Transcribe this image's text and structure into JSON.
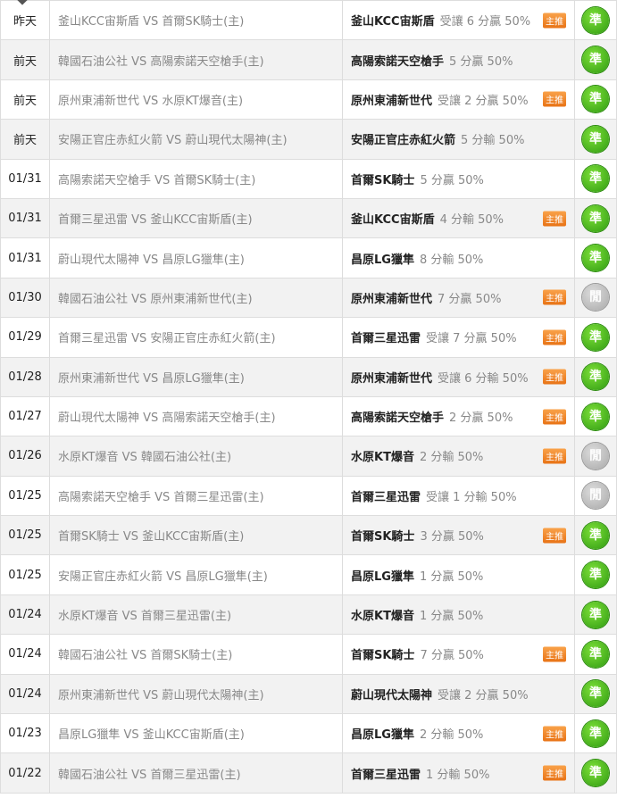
{
  "tag_label": "主推",
  "colors": {
    "correct": "#2e9a10",
    "pending": "#a8a8a8",
    "tag": "#e87316"
  },
  "rows": [
    {
      "date": "昨天",
      "match": "釜山KCC宙斯盾 VS 首爾SK騎士(主)",
      "team": "釜山KCC宙斯盾",
      "detail": "受讓 6 分贏 50%",
      "tag": true,
      "status": "準",
      "status_type": "green"
    },
    {
      "date": "前天",
      "match": "韓國石油公社 VS 高陽索諾天空槍手(主)",
      "team": "高陽索諾天空槍手",
      "detail": "5 分贏 50%",
      "tag": false,
      "status": "準",
      "status_type": "green"
    },
    {
      "date": "前天",
      "match": "原州東浦新世代 VS 水原KT爆音(主)",
      "team": "原州東浦新世代",
      "detail": "受讓 2 分贏 50%",
      "tag": true,
      "status": "準",
      "status_type": "green"
    },
    {
      "date": "前天",
      "match": "安陽正官庄赤紅火箭 VS 蔚山現代太陽神(主)",
      "team": "安陽正官庄赤紅火箭",
      "detail": "5 分輸 50%",
      "tag": false,
      "status": "準",
      "status_type": "green"
    },
    {
      "date": "01/31",
      "match": "高陽索諾天空槍手 VS 首爾SK騎士(主)",
      "team": "首爾SK騎士",
      "detail": "5 分贏 50%",
      "tag": false,
      "status": "準",
      "status_type": "green"
    },
    {
      "date": "01/31",
      "match": "首爾三星迅雷 VS 釜山KCC宙斯盾(主)",
      "team": "釜山KCC宙斯盾",
      "detail": "4 分輸 50%",
      "tag": true,
      "status": "準",
      "status_type": "green"
    },
    {
      "date": "01/31",
      "match": "蔚山現代太陽神 VS 昌原LG獵隼(主)",
      "team": "昌原LG獵隼",
      "detail": "8 分輸 50%",
      "tag": false,
      "status": "準",
      "status_type": "green"
    },
    {
      "date": "01/30",
      "match": "韓國石油公社 VS 原州東浦新世代(主)",
      "team": "原州東浦新世代",
      "detail": "7 分贏 50%",
      "tag": true,
      "status": "閒",
      "status_type": "grey"
    },
    {
      "date": "01/29",
      "match": "首爾三星迅雷 VS 安陽正官庄赤紅火箭(主)",
      "team": "首爾三星迅雷",
      "detail": "受讓 7 分贏 50%",
      "tag": true,
      "status": "準",
      "status_type": "green"
    },
    {
      "date": "01/28",
      "match": "原州東浦新世代 VS 昌原LG獵隼(主)",
      "team": "原州東浦新世代",
      "detail": "受讓 6 分輸 50%",
      "tag": true,
      "status": "準",
      "status_type": "green"
    },
    {
      "date": "01/27",
      "match": "蔚山現代太陽神 VS 高陽索諾天空槍手(主)",
      "team": "高陽索諾天空槍手",
      "detail": "2 分贏 50%",
      "tag": true,
      "status": "準",
      "status_type": "green"
    },
    {
      "date": "01/26",
      "match": "水原KT爆音 VS 韓國石油公社(主)",
      "team": "水原KT爆音",
      "detail": "2 分輸 50%",
      "tag": true,
      "status": "閒",
      "status_type": "grey"
    },
    {
      "date": "01/25",
      "match": "高陽索諾天空槍手 VS 首爾三星迅雷(主)",
      "team": "首爾三星迅雷",
      "detail": "受讓 1 分輸 50%",
      "tag": false,
      "status": "閒",
      "status_type": "grey"
    },
    {
      "date": "01/25",
      "match": "首爾SK騎士 VS 釜山KCC宙斯盾(主)",
      "team": "首爾SK騎士",
      "detail": "3 分贏 50%",
      "tag": true,
      "status": "準",
      "status_type": "green"
    },
    {
      "date": "01/25",
      "match": "安陽正官庄赤紅火箭 VS 昌原LG獵隼(主)",
      "team": "昌原LG獵隼",
      "detail": "1 分贏 50%",
      "tag": false,
      "status": "準",
      "status_type": "green"
    },
    {
      "date": "01/24",
      "match": "水原KT爆音 VS 首爾三星迅雷(主)",
      "team": "水原KT爆音",
      "detail": "1 分贏 50%",
      "tag": false,
      "status": "準",
      "status_type": "green"
    },
    {
      "date": "01/24",
      "match": "韓國石油公社 VS 首爾SK騎士(主)",
      "team": "首爾SK騎士",
      "detail": "7 分贏 50%",
      "tag": true,
      "status": "準",
      "status_type": "green"
    },
    {
      "date": "01/24",
      "match": "原州東浦新世代 VS 蔚山現代太陽神(主)",
      "team": "蔚山現代太陽神",
      "detail": "受讓 2 分贏 50%",
      "tag": false,
      "status": "準",
      "status_type": "green"
    },
    {
      "date": "01/23",
      "match": "昌原LG獵隼 VS 釜山KCC宙斯盾(主)",
      "team": "昌原LG獵隼",
      "detail": "2 分輸 50%",
      "tag": true,
      "status": "準",
      "status_type": "green"
    },
    {
      "date": "01/22",
      "match": "韓國石油公社 VS 首爾三星迅雷(主)",
      "team": "首爾三星迅雷",
      "detail": "1 分輸 50%",
      "tag": true,
      "status": "準",
      "status_type": "green"
    }
  ]
}
